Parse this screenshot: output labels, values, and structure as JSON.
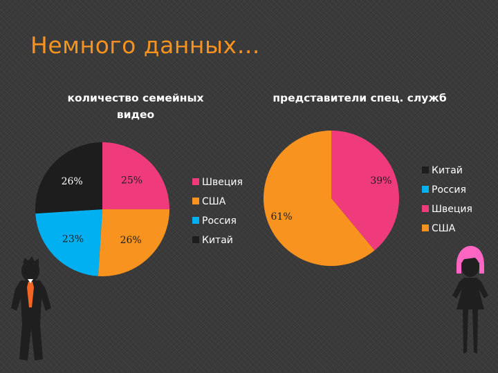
{
  "slide": {
    "title": "Немного данных…"
  },
  "colors": {
    "Швеция": "#ef3a7c",
    "США": "#f7931e",
    "Россия": "#00b0f0",
    "Китай": "#1d1d1d",
    "label_light": "#ffffff",
    "label_dark": "#1d1d1d"
  },
  "chart_data": [
    {
      "type": "pie",
      "title": "количество семейных видео",
      "slices": [
        {
          "name": "Швеция",
          "value": 25,
          "label": "25%"
        },
        {
          "name": "США",
          "value": 26,
          "label": "26%"
        },
        {
          "name": "Россия",
          "value": 23,
          "label": "23%"
        },
        {
          "name": "Китай",
          "value": 26,
          "label": "26%"
        }
      ],
      "legend": [
        "Швеция",
        "США",
        "Россия",
        "Китай"
      ],
      "legend_position": "right"
    },
    {
      "type": "pie",
      "title": "представители спец. служб",
      "slices": [
        {
          "name": "Швеция",
          "value": 39,
          "label": "39%"
        },
        {
          "name": "США",
          "value": 61,
          "label": "61%"
        }
      ],
      "legend": [
        "Китай",
        "Россия",
        "Швеция",
        "США"
      ],
      "legend_position": "right"
    }
  ],
  "decor": {
    "left_figure": "man-with-orange-tie",
    "right_figure": "woman-with-pink-hair"
  }
}
